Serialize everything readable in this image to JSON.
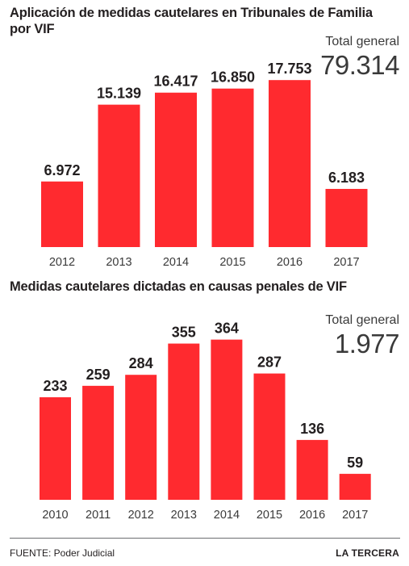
{
  "chart_data": [
    {
      "type": "bar",
      "title": "Aplicación de medidas cautelares en Tribunales de Familia por VIF",
      "categories": [
        "2012",
        "2013",
        "2014",
        "2015",
        "2016",
        "2017"
      ],
      "values": [
        6972,
        15139,
        16417,
        16850,
        17753,
        6183
      ],
      "value_labels": [
        "6.972",
        "15.139",
        "16.417",
        "16.850",
        "17.753",
        "6.183"
      ],
      "total_label": "Total general",
      "total_value": "79.314",
      "ylim": [
        0,
        20000
      ],
      "grid": false,
      "bar_color": "#ff2a2f"
    },
    {
      "type": "bar",
      "title": "Medidas cautelares dictadas en causas penales de VIF",
      "categories": [
        "2010",
        "2011",
        "2012",
        "2013",
        "2014",
        "2015",
        "2016",
        "2017"
      ],
      "values": [
        233,
        259,
        284,
        355,
        364,
        287,
        136,
        59
      ],
      "value_labels": [
        "233",
        "259",
        "284",
        "355",
        "364",
        "287",
        "136",
        "59"
      ],
      "total_label": "Total general",
      "total_value": "1.977",
      "ylim": [
        0,
        400
      ],
      "grid": false,
      "bar_color": "#ff2a2f"
    }
  ],
  "footer": {
    "source": "FUENTE: Poder Judicial",
    "brand": "LA TERCERA"
  }
}
